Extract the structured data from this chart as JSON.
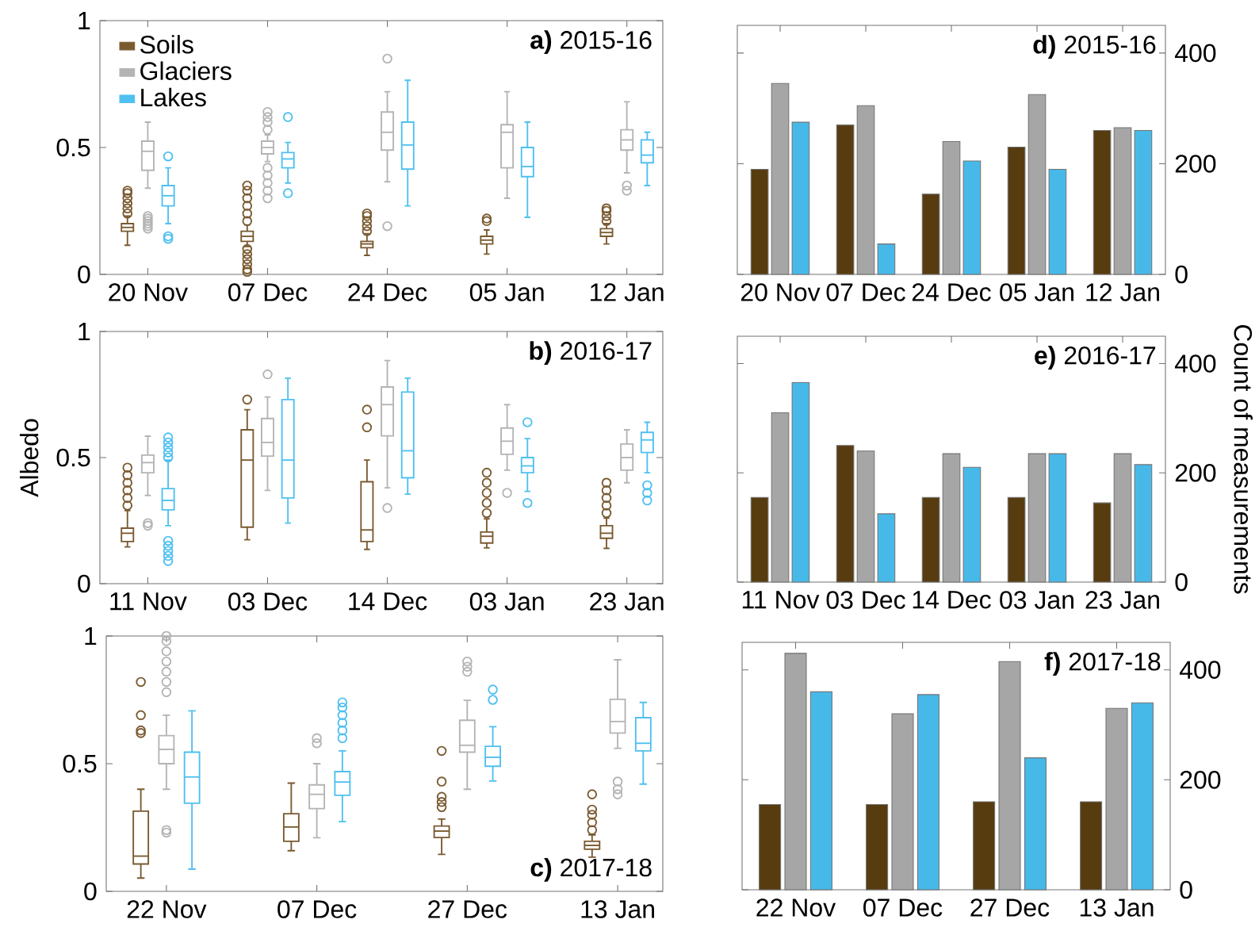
{
  "chart_data": [
    {
      "type": "box",
      "title": "**a)** 2015-16",
      "categories": [
        "20 Nov",
        "07 Dec",
        "24 Dec",
        "05 Jan",
        "12 Jan"
      ],
      "ylim": [
        0,
        1
      ],
      "yticks": [
        0,
        0.5,
        1
      ],
      "legend": "top left",
      "series": [
        {
          "name": "Soils",
          "color": "#7a5a30",
          "boxes": [
            {
              "low": 0.115,
              "q1": 0.17,
              "median": 0.185,
              "q3": 0.2,
              "high": 0.23,
              "outliers": [
                0.24,
                0.26,
                0.28,
                0.3,
                0.32,
                0.33
              ]
            },
            {
              "low": 0.11,
              "q1": 0.13,
              "median": 0.15,
              "q3": 0.17,
              "high": 0.195,
              "outliers": [
                0.21,
                0.24,
                0.27,
                0.3,
                0.33,
                0.35,
                0.1,
                0.08,
                0.06,
                0.04,
                0.02,
                0.01
              ]
            },
            {
              "low": 0.075,
              "q1": 0.105,
              "median": 0.12,
              "q3": 0.13,
              "high": 0.16,
              "outliers": [
                0.17,
                0.19,
                0.21,
                0.23,
                0.24
              ]
            },
            {
              "low": 0.08,
              "q1": 0.12,
              "median": 0.135,
              "q3": 0.15,
              "high": 0.175,
              "outliers": [
                0.21,
                0.22
              ]
            },
            {
              "low": 0.12,
              "q1": 0.15,
              "median": 0.165,
              "q3": 0.18,
              "high": 0.2,
              "outliers": [
                0.21,
                0.23,
                0.25,
                0.26
              ]
            }
          ]
        },
        {
          "name": "Glaciers",
          "color": "#b4b4b4",
          "boxes": [
            {
              "low": 0.34,
              "q1": 0.41,
              "median": 0.485,
              "q3": 0.525,
              "high": 0.6,
              "outliers": [
                0.18,
                0.19,
                0.2,
                0.21,
                0.22,
                0.23
              ]
            },
            {
              "low": 0.445,
              "q1": 0.475,
              "median": 0.5,
              "q3": 0.525,
              "high": 0.55,
              "outliers": [
                0.57,
                0.6,
                0.62,
                0.64,
                0.3,
                0.33,
                0.36,
                0.39,
                0.42
              ]
            },
            {
              "low": 0.365,
              "q1": 0.49,
              "median": 0.56,
              "q3": 0.64,
              "high": 0.72,
              "outliers": [
                0.85,
                0.19
              ]
            },
            {
              "low": 0.3,
              "q1": 0.42,
              "median": 0.56,
              "q3": 0.59,
              "high": 0.72
            },
            {
              "low": 0.4,
              "q1": 0.49,
              "median": 0.53,
              "q3": 0.57,
              "high": 0.68,
              "outliers": [
                0.35,
                0.33
              ]
            }
          ]
        },
        {
          "name": "Lakes",
          "color": "#4fc0f0",
          "boxes": [
            {
              "low": 0.2,
              "q1": 0.27,
              "median": 0.31,
              "q3": 0.35,
              "high": 0.42,
              "outliers": [
                0.465,
                0.15,
                0.14
              ]
            },
            {
              "low": 0.36,
              "q1": 0.42,
              "median": 0.455,
              "q3": 0.48,
              "high": 0.52,
              "outliers": [
                0.62,
                0.32
              ]
            },
            {
              "low": 0.27,
              "q1": 0.415,
              "median": 0.51,
              "q3": 0.6,
              "high": 0.765
            },
            {
              "low": 0.225,
              "q1": 0.385,
              "median": 0.425,
              "q3": 0.5,
              "high": 0.6
            },
            {
              "low": 0.35,
              "q1": 0.44,
              "median": 0.47,
              "q3": 0.53,
              "high": 0.56
            }
          ]
        }
      ]
    },
    {
      "type": "bar",
      "title": "**d)** 2015-16",
      "categories": [
        "20 Nov",
        "07 Dec",
        "24 Dec",
        "05 Jan",
        "12 Jan"
      ],
      "y2lim": [
        0,
        450
      ],
      "y2ticks": [
        0,
        200,
        400
      ],
      "series": [
        {
          "color": "#573c10",
          "axis": "y2",
          "values": [
            190,
            270,
            145,
            230,
            260
          ]
        },
        {
          "color": "#a6a6a6",
          "axis": "y2",
          "values": [
            345,
            305,
            240,
            325,
            265
          ]
        },
        {
          "color": "#47b9e9",
          "axis": "y2",
          "values": [
            275,
            55,
            205,
            190,
            260
          ]
        }
      ]
    },
    {
      "type": "box",
      "title": "**b)** 2016-17",
      "ylabel": "Albedo",
      "categories": [
        "11 Nov",
        "03 Dec",
        "14 Dec",
        "03 Jan",
        "23 Jan"
      ],
      "ylim": [
        0,
        1
      ],
      "yticks": [
        0,
        0.5,
        1
      ],
      "series": [
        {
          "color": "#7a5a30",
          "boxes": [
            {
              "low": 0.146,
              "q1": 0.167,
              "median": 0.2,
              "q3": 0.22,
              "high": 0.29,
              "outliers": [
                0.31,
                0.34,
                0.37,
                0.4,
                0.43,
                0.46
              ]
            },
            {
              "low": 0.174,
              "q1": 0.224,
              "median": 0.49,
              "q3": 0.61,
              "high": 0.69,
              "outliers": [
                0.73
              ]
            },
            {
              "low": 0.136,
              "q1": 0.167,
              "median": 0.213,
              "q3": 0.404,
              "high": 0.49,
              "outliers": [
                0.62,
                0.69
              ]
            },
            {
              "low": 0.142,
              "q1": 0.161,
              "median": 0.188,
              "q3": 0.205,
              "high": 0.257,
              "outliers": [
                0.28,
                0.32,
                0.36,
                0.4,
                0.44
              ]
            },
            {
              "low": 0.14,
              "q1": 0.18,
              "median": 0.2,
              "q3": 0.23,
              "high": 0.26,
              "outliers": [
                0.28,
                0.31,
                0.34,
                0.37,
                0.4
              ]
            }
          ]
        },
        {
          "color": "#b4b4b4",
          "boxes": [
            {
              "low": 0.35,
              "q1": 0.44,
              "median": 0.48,
              "q3": 0.51,
              "high": 0.585,
              "outliers": [
                0.23,
                0.24
              ]
            },
            {
              "low": 0.37,
              "q1": 0.506,
              "median": 0.56,
              "q3": 0.655,
              "high": 0.74,
              "outliers": [
                0.83
              ]
            },
            {
              "low": 0.38,
              "q1": 0.586,
              "median": 0.71,
              "q3": 0.78,
              "high": 0.885,
              "outliers": [
                0.3
              ]
            },
            {
              "low": 0.45,
              "q1": 0.513,
              "median": 0.565,
              "q3": 0.617,
              "high": 0.71,
              "outliers": [
                0.36
              ]
            },
            {
              "low": 0.4,
              "q1": 0.45,
              "median": 0.5,
              "q3": 0.554,
              "high": 0.61
            }
          ]
        },
        {
          "color": "#4fc0f0",
          "boxes": [
            {
              "low": 0.23,
              "q1": 0.293,
              "median": 0.33,
              "q3": 0.377,
              "high": 0.49,
              "outliers": [
                0.5,
                0.52,
                0.54,
                0.56,
                0.58,
                0.17,
                0.15,
                0.13,
                0.11,
                0.09
              ]
            },
            {
              "low": 0.24,
              "q1": 0.34,
              "median": 0.49,
              "q3": 0.73,
              "high": 0.815
            },
            {
              "low": 0.355,
              "q1": 0.42,
              "median": 0.527,
              "q3": 0.76,
              "high": 0.815
            },
            {
              "low": 0.366,
              "q1": 0.44,
              "median": 0.467,
              "q3": 0.5,
              "high": 0.575,
              "outliers": [
                0.64,
                0.32
              ]
            },
            {
              "low": 0.44,
              "q1": 0.52,
              "median": 0.57,
              "q3": 0.6,
              "high": 0.64,
              "outliers": [
                0.39,
                0.36,
                0.33
              ]
            }
          ]
        }
      ]
    },
    {
      "type": "bar",
      "title": "**e)** 2016-17",
      "y2label": "Count of measurements",
      "categories": [
        "11 Nov",
        "03 Dec",
        "14 Dec",
        "03 Jan",
        "23 Jan"
      ],
      "y2lim": [
        0,
        450
      ],
      "y2ticks": [
        0,
        200,
        400
      ],
      "series": [
        {
          "color": "#573c10",
          "axis": "y2",
          "values": [
            155,
            250,
            155,
            155,
            145
          ]
        },
        {
          "color": "#a6a6a6",
          "axis": "y2",
          "values": [
            310,
            240,
            235,
            235,
            235
          ]
        },
        {
          "color": "#47b9e9",
          "axis": "y2",
          "values": [
            365,
            125,
            210,
            235,
            215
          ]
        }
      ]
    },
    {
      "type": "box",
      "title": "**c)** 2017-18",
      "categories": [
        "22 Nov",
        "07 Dec",
        "27 Dec",
        "13 Jan"
      ],
      "ylim": [
        0,
        1
      ],
      "yticks": [
        0,
        0.5,
        1
      ],
      "series": [
        {
          "color": "#7a5a30",
          "boxes": [
            {
              "low": 0.052,
              "q1": 0.107,
              "median": 0.138,
              "q3": 0.314,
              "high": 0.4,
              "outliers": [
                0.62,
                0.63,
                0.69,
                0.82
              ]
            },
            {
              "low": 0.159,
              "q1": 0.196,
              "median": 0.252,
              "q3": 0.304,
              "high": 0.424
            },
            {
              "low": 0.145,
              "q1": 0.211,
              "median": 0.236,
              "q3": 0.256,
              "high": 0.283,
              "outliers": [
                0.33,
                0.35,
                0.37,
                0.43,
                0.55
              ]
            },
            {
              "low": 0.134,
              "q1": 0.165,
              "median": 0.18,
              "q3": 0.196,
              "high": 0.221,
              "outliers": [
                0.24,
                0.27,
                0.3,
                0.32,
                0.38
              ]
            }
          ]
        },
        {
          "color": "#b4b4b4",
          "boxes": [
            {
              "low": 0.4,
              "q1": 0.5,
              "median": 0.556,
              "q3": 0.61,
              "high": 0.69,
              "outliers": [
                0.23,
                0.24,
                0.78,
                0.82,
                0.86,
                0.9,
                0.94,
                0.98,
                1.0
              ]
            },
            {
              "low": 0.21,
              "q1": 0.324,
              "median": 0.38,
              "q3": 0.417,
              "high": 0.5,
              "outliers": [
                0.58,
                0.6
              ]
            },
            {
              "low": 0.4,
              "q1": 0.545,
              "median": 0.572,
              "q3": 0.67,
              "high": 0.748,
              "outliers": [
                0.86,
                0.88,
                0.9
              ]
            },
            {
              "low": 0.56,
              "q1": 0.62,
              "median": 0.665,
              "q3": 0.752,
              "high": 0.907,
              "outliers": [
                0.43,
                0.4,
                0.38
              ]
            }
          ]
        },
        {
          "color": "#4fc0f0",
          "boxes": [
            {
              "low": 0.087,
              "q1": 0.345,
              "median": 0.448,
              "q3": 0.545,
              "high": 0.707
            },
            {
              "low": 0.273,
              "q1": 0.376,
              "median": 0.428,
              "q3": 0.469,
              "high": 0.55,
              "outliers": [
                0.6,
                0.63,
                0.66,
                0.69,
                0.72,
                0.74
              ]
            },
            {
              "low": 0.432,
              "q1": 0.49,
              "median": 0.525,
              "q3": 0.568,
              "high": 0.645,
              "outliers": [
                0.75,
                0.79
              ]
            },
            {
              "low": 0.42,
              "q1": 0.55,
              "median": 0.58,
              "q3": 0.68,
              "high": 0.74
            }
          ]
        }
      ]
    },
    {
      "type": "bar",
      "title": "**f)** 2017-18",
      "categories": [
        "22 Nov",
        "07 Dec",
        "27 Dec",
        "13 Jan"
      ],
      "y2lim": [
        0,
        450
      ],
      "y2ticks": [
        0,
        200,
        400
      ],
      "series": [
        {
          "color": "#573c10",
          "axis": "y2",
          "values": [
            155,
            155,
            160,
            160
          ]
        },
        {
          "color": "#a6a6a6",
          "axis": "y2",
          "values": [
            430,
            320,
            415,
            330
          ]
        },
        {
          "color": "#47b9e9",
          "axis": "y2",
          "values": [
            360,
            355,
            240,
            340
          ]
        }
      ]
    }
  ]
}
